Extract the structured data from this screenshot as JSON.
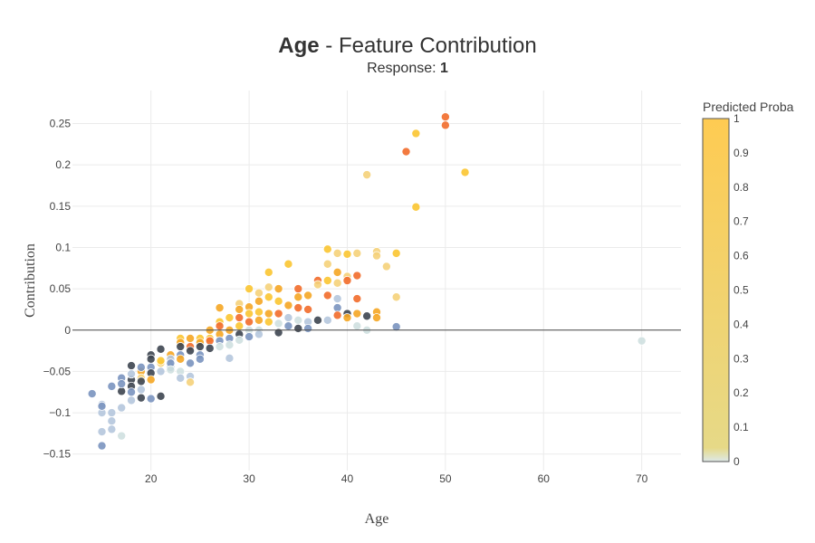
{
  "title": {
    "bold": "Age",
    "rest": " - Feature Contribution"
  },
  "subtitle": {
    "prefix": "Response: ",
    "value": "1"
  },
  "chart_data": {
    "type": "scatter",
    "xlabel": "Age",
    "ylabel": "Contribution",
    "xlim": [
      12,
      74
    ],
    "ylim": [
      -0.17,
      0.29
    ],
    "x_ticks": [
      20,
      30,
      40,
      50,
      60,
      70
    ],
    "y_ticks": [
      -0.15,
      -0.1,
      -0.05,
      0,
      0.05,
      0.1,
      0.15,
      0.2,
      0.25
    ],
    "y_tick_labels": [
      "−0.15",
      "−0.1",
      "−0.05",
      "0",
      "0.05",
      "0.1",
      "0.15",
      "0.2",
      "0.25"
    ],
    "zero_line": true,
    "grid": true,
    "colorbar": {
      "title": "Predicted Proba",
      "ticks": [
        0,
        0.1,
        0.2,
        0.3,
        0.4,
        0.5,
        0.6,
        0.7,
        0.8,
        0.9,
        1
      ],
      "tick_labels": [
        "0",
        "0.1",
        "0.2",
        "0.3",
        "0.4",
        "0.5",
        "0.6",
        "0.7",
        "0.8",
        "0.9",
        "1"
      ],
      "gradient": [
        "#dde8e8",
        "#e8d67a",
        "#fecb52"
      ]
    },
    "point_colors": {
      "dark": "#3d4550",
      "blue": "#7a93bf",
      "lightblue": "#b5c6dd",
      "pale": "#cfe0e0",
      "yellow": "#fbc531",
      "paleyellow": "#f5d27a",
      "orange": "#f5a623",
      "red": "#f26b2a"
    },
    "points": [
      {
        "x": 14,
        "y": -0.077,
        "c": "blue"
      },
      {
        "x": 15,
        "y": -0.14,
        "c": "blue"
      },
      {
        "x": 15,
        "y": -0.123,
        "c": "lightblue"
      },
      {
        "x": 15,
        "y": -0.1,
        "c": "lightblue"
      },
      {
        "x": 15,
        "y": -0.09,
        "c": "lightblue"
      },
      {
        "x": 15,
        "y": -0.092,
        "c": "blue"
      },
      {
        "x": 16,
        "y": -0.068,
        "c": "blue"
      },
      {
        "x": 16,
        "y": -0.1,
        "c": "lightblue"
      },
      {
        "x": 16,
        "y": -0.11,
        "c": "lightblue"
      },
      {
        "x": 16,
        "y": -0.12,
        "c": "lightblue"
      },
      {
        "x": 17,
        "y": -0.128,
        "c": "pale"
      },
      {
        "x": 17,
        "y": -0.094,
        "c": "lightblue"
      },
      {
        "x": 17,
        "y": -0.074,
        "c": "dark"
      },
      {
        "x": 17,
        "y": -0.058,
        "c": "blue"
      },
      {
        "x": 17,
        "y": -0.065,
        "c": "blue"
      },
      {
        "x": 18,
        "y": -0.043,
        "c": "dark"
      },
      {
        "x": 18,
        "y": -0.06,
        "c": "dark"
      },
      {
        "x": 18,
        "y": -0.068,
        "c": "dark"
      },
      {
        "x": 18,
        "y": -0.075,
        "c": "blue"
      },
      {
        "x": 18,
        "y": -0.085,
        "c": "lightblue"
      },
      {
        "x": 18,
        "y": -0.053,
        "c": "lightblue"
      },
      {
        "x": 19,
        "y": -0.05,
        "c": "orange"
      },
      {
        "x": 19,
        "y": -0.058,
        "c": "paleyellow"
      },
      {
        "x": 19,
        "y": -0.062,
        "c": "dark"
      },
      {
        "x": 19,
        "y": -0.072,
        "c": "lightblue"
      },
      {
        "x": 19,
        "y": -0.082,
        "c": "dark"
      },
      {
        "x": 19,
        "y": -0.045,
        "c": "blue"
      },
      {
        "x": 20,
        "y": -0.03,
        "c": "dark"
      },
      {
        "x": 20,
        "y": -0.035,
        "c": "dark"
      },
      {
        "x": 20,
        "y": -0.045,
        "c": "blue"
      },
      {
        "x": 20,
        "y": -0.052,
        "c": "dark"
      },
      {
        "x": 20,
        "y": -0.06,
        "c": "orange"
      },
      {
        "x": 20,
        "y": -0.083,
        "c": "blue"
      },
      {
        "x": 21,
        "y": -0.023,
        "c": "dark"
      },
      {
        "x": 21,
        "y": -0.04,
        "c": "paleyellow"
      },
      {
        "x": 21,
        "y": -0.037,
        "c": "yellow"
      },
      {
        "x": 21,
        "y": -0.05,
        "c": "lightblue"
      },
      {
        "x": 21,
        "y": -0.08,
        "c": "dark"
      },
      {
        "x": 22,
        "y": -0.03,
        "c": "orange"
      },
      {
        "x": 22,
        "y": -0.035,
        "c": "lightblue"
      },
      {
        "x": 22,
        "y": -0.045,
        "c": "blue"
      },
      {
        "x": 22,
        "y": -0.04,
        "c": "blue"
      },
      {
        "x": 22,
        "y": -0.048,
        "c": "pale"
      },
      {
        "x": 23,
        "y": -0.01,
        "c": "yellow"
      },
      {
        "x": 23,
        "y": -0.015,
        "c": "orange"
      },
      {
        "x": 23,
        "y": -0.02,
        "c": "dark"
      },
      {
        "x": 23,
        "y": -0.03,
        "c": "blue"
      },
      {
        "x": 23,
        "y": -0.035,
        "c": "orange"
      },
      {
        "x": 23,
        "y": -0.05,
        "c": "pale"
      },
      {
        "x": 23,
        "y": -0.058,
        "c": "lightblue"
      },
      {
        "x": 24,
        "y": -0.01,
        "c": "orange"
      },
      {
        "x": 24,
        "y": -0.02,
        "c": "red"
      },
      {
        "x": 24,
        "y": -0.025,
        "c": "dark"
      },
      {
        "x": 24,
        "y": -0.04,
        "c": "blue"
      },
      {
        "x": 24,
        "y": -0.056,
        "c": "lightblue"
      },
      {
        "x": 24,
        "y": -0.063,
        "c": "paleyellow"
      },
      {
        "x": 25,
        "y": -0.01,
        "c": "yellow"
      },
      {
        "x": 25,
        "y": -0.015,
        "c": "orange"
      },
      {
        "x": 25,
        "y": -0.02,
        "c": "dark"
      },
      {
        "x": 25,
        "y": -0.03,
        "c": "blue"
      },
      {
        "x": 25,
        "y": -0.035,
        "c": "blue"
      },
      {
        "x": 26,
        "y": 0.0,
        "c": "orange"
      },
      {
        "x": 26,
        "y": -0.01,
        "c": "yellow"
      },
      {
        "x": 26,
        "y": -0.013,
        "c": "red"
      },
      {
        "x": 26,
        "y": -0.022,
        "c": "dark"
      },
      {
        "x": 27,
        "y": 0.027,
        "c": "orange"
      },
      {
        "x": 27,
        "y": 0.01,
        "c": "yellow"
      },
      {
        "x": 27,
        "y": 0.005,
        "c": "red"
      },
      {
        "x": 27,
        "y": -0.005,
        "c": "orange"
      },
      {
        "x": 27,
        "y": -0.013,
        "c": "blue"
      },
      {
        "x": 27,
        "y": -0.02,
        "c": "pale"
      },
      {
        "x": 28,
        "y": 0.015,
        "c": "yellow"
      },
      {
        "x": 28,
        "y": 0.0,
        "c": "orange"
      },
      {
        "x": 28,
        "y": -0.01,
        "c": "blue"
      },
      {
        "x": 28,
        "y": -0.018,
        "c": "pale"
      },
      {
        "x": 28,
        "y": -0.034,
        "c": "lightblue"
      },
      {
        "x": 29,
        "y": 0.032,
        "c": "paleyellow"
      },
      {
        "x": 29,
        "y": 0.025,
        "c": "orange"
      },
      {
        "x": 29,
        "y": 0.015,
        "c": "red"
      },
      {
        "x": 29,
        "y": 0.005,
        "c": "yellow"
      },
      {
        "x": 29,
        "y": -0.005,
        "c": "dark"
      },
      {
        "x": 29,
        "y": -0.012,
        "c": "pale"
      },
      {
        "x": 30,
        "y": 0.05,
        "c": "yellow"
      },
      {
        "x": 30,
        "y": 0.028,
        "c": "orange"
      },
      {
        "x": 30,
        "y": 0.02,
        "c": "yellow"
      },
      {
        "x": 30,
        "y": 0.01,
        "c": "red"
      },
      {
        "x": 30,
        "y": 0.0,
        "c": "pale"
      },
      {
        "x": 30,
        "y": -0.008,
        "c": "blue"
      },
      {
        "x": 31,
        "y": 0.045,
        "c": "paleyellow"
      },
      {
        "x": 31,
        "y": 0.035,
        "c": "orange"
      },
      {
        "x": 31,
        "y": 0.022,
        "c": "yellow"
      },
      {
        "x": 31,
        "y": 0.012,
        "c": "orange"
      },
      {
        "x": 31,
        "y": 0.0,
        "c": "pale"
      },
      {
        "x": 31,
        "y": -0.005,
        "c": "lightblue"
      },
      {
        "x": 32,
        "y": 0.07,
        "c": "yellow"
      },
      {
        "x": 32,
        "y": 0.052,
        "c": "paleyellow"
      },
      {
        "x": 32,
        "y": 0.04,
        "c": "yellow"
      },
      {
        "x": 32,
        "y": 0.02,
        "c": "orange"
      },
      {
        "x": 32,
        "y": 0.01,
        "c": "yellow"
      },
      {
        "x": 33,
        "y": 0.05,
        "c": "orange"
      },
      {
        "x": 33,
        "y": 0.035,
        "c": "yellow"
      },
      {
        "x": 33,
        "y": 0.02,
        "c": "red"
      },
      {
        "x": 33,
        "y": 0.008,
        "c": "pale"
      },
      {
        "x": 33,
        "y": -0.003,
        "c": "dark"
      },
      {
        "x": 34,
        "y": 0.08,
        "c": "yellow"
      },
      {
        "x": 34,
        "y": 0.03,
        "c": "orange"
      },
      {
        "x": 34,
        "y": 0.015,
        "c": "lightblue"
      },
      {
        "x": 34,
        "y": 0.005,
        "c": "blue"
      },
      {
        "x": 35,
        "y": 0.05,
        "c": "red"
      },
      {
        "x": 35,
        "y": 0.04,
        "c": "orange"
      },
      {
        "x": 35,
        "y": 0.027,
        "c": "red"
      },
      {
        "x": 35,
        "y": 0.012,
        "c": "pale"
      },
      {
        "x": 35,
        "y": 0.002,
        "c": "dark"
      },
      {
        "x": 36,
        "y": 0.042,
        "c": "orange"
      },
      {
        "x": 36,
        "y": 0.025,
        "c": "red"
      },
      {
        "x": 36,
        "y": 0.01,
        "c": "lightblue"
      },
      {
        "x": 36,
        "y": 0.002,
        "c": "blue"
      },
      {
        "x": 37,
        "y": 0.06,
        "c": "red"
      },
      {
        "x": 37,
        "y": 0.055,
        "c": "paleyellow"
      },
      {
        "x": 37,
        "y": 0.012,
        "c": "dark"
      },
      {
        "x": 38,
        "y": 0.098,
        "c": "yellow"
      },
      {
        "x": 38,
        "y": 0.08,
        "c": "paleyellow"
      },
      {
        "x": 38,
        "y": 0.06,
        "c": "yellow"
      },
      {
        "x": 38,
        "y": 0.042,
        "c": "red"
      },
      {
        "x": 38,
        "y": 0.012,
        "c": "lightblue"
      },
      {
        "x": 39,
        "y": 0.093,
        "c": "paleyellow"
      },
      {
        "x": 39,
        "y": 0.07,
        "c": "orange"
      },
      {
        "x": 39,
        "y": 0.057,
        "c": "paleyellow"
      },
      {
        "x": 39,
        "y": 0.038,
        "c": "lightblue"
      },
      {
        "x": 39,
        "y": 0.027,
        "c": "blue"
      },
      {
        "x": 39,
        "y": 0.018,
        "c": "red"
      },
      {
        "x": 40,
        "y": 0.092,
        "c": "yellow"
      },
      {
        "x": 40,
        "y": 0.065,
        "c": "paleyellow"
      },
      {
        "x": 40,
        "y": 0.06,
        "c": "red"
      },
      {
        "x": 40,
        "y": 0.02,
        "c": "dark"
      },
      {
        "x": 40,
        "y": 0.015,
        "c": "orange"
      },
      {
        "x": 41,
        "y": 0.093,
        "c": "paleyellow"
      },
      {
        "x": 41,
        "y": 0.066,
        "c": "red"
      },
      {
        "x": 41,
        "y": 0.038,
        "c": "red"
      },
      {
        "x": 41,
        "y": 0.02,
        "c": "orange"
      },
      {
        "x": 41,
        "y": 0.005,
        "c": "pale"
      },
      {
        "x": 42,
        "y": 0.188,
        "c": "paleyellow"
      },
      {
        "x": 42,
        "y": 0.017,
        "c": "dark"
      },
      {
        "x": 42,
        "y": 0.0,
        "c": "pale"
      },
      {
        "x": 43,
        "y": 0.095,
        "c": "paleyellow"
      },
      {
        "x": 43,
        "y": 0.09,
        "c": "paleyellow"
      },
      {
        "x": 43,
        "y": 0.022,
        "c": "orange"
      },
      {
        "x": 43,
        "y": 0.015,
        "c": "orange"
      },
      {
        "x": 44,
        "y": 0.077,
        "c": "paleyellow"
      },
      {
        "x": 45,
        "y": 0.093,
        "c": "yellow"
      },
      {
        "x": 45,
        "y": 0.04,
        "c": "paleyellow"
      },
      {
        "x": 45,
        "y": 0.004,
        "c": "blue"
      },
      {
        "x": 46,
        "y": 0.216,
        "c": "red"
      },
      {
        "x": 47,
        "y": 0.238,
        "c": "yellow"
      },
      {
        "x": 47,
        "y": 0.149,
        "c": "yellow"
      },
      {
        "x": 50,
        "y": 0.258,
        "c": "red"
      },
      {
        "x": 50,
        "y": 0.248,
        "c": "red"
      },
      {
        "x": 52,
        "y": 0.191,
        "c": "yellow"
      },
      {
        "x": 70,
        "y": -0.013,
        "c": "pale"
      }
    ]
  }
}
